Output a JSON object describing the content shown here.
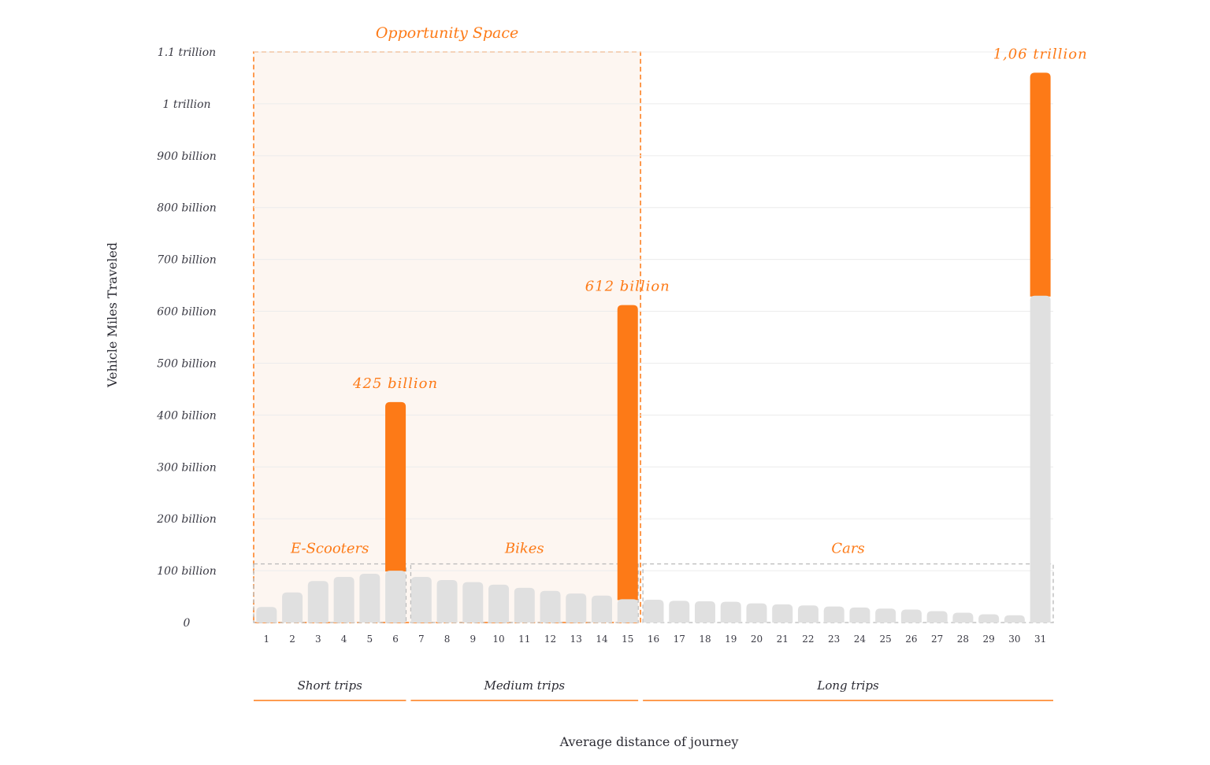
{
  "chart_data": {
    "type": "bar",
    "title": "",
    "xlabel": "Average distance of journey",
    "ylabel": "Vehicle Miles Traveled",
    "ylim": [
      0,
      1100
    ],
    "ytick_labels": [
      {
        "value": 0,
        "label": "0"
      },
      {
        "value": 100,
        "label": "100 billion"
      },
      {
        "value": 200,
        "label": "200 billion"
      },
      {
        "value": 300,
        "label": "300 billion"
      },
      {
        "value": 400,
        "label": "400 billion"
      },
      {
        "value": 500,
        "label": "500 billion"
      },
      {
        "value": 600,
        "label": "600 billion"
      },
      {
        "value": 700,
        "label": "700 billion"
      },
      {
        "value": 800,
        "label": "800 billion"
      },
      {
        "value": 900,
        "label": "900 billion"
      },
      {
        "value": 1000,
        "label": "1 trillion"
      },
      {
        "value": 1100,
        "label": "1.1 trillion"
      }
    ],
    "categories": [
      "1",
      "2",
      "3",
      "4",
      "5",
      "6",
      "7",
      "8",
      "9",
      "10",
      "11",
      "12",
      "13",
      "14",
      "15",
      "16",
      "17",
      "18",
      "19",
      "20",
      "21",
      "22",
      "23",
      "24",
      "25",
      "26",
      "27",
      "28",
      "29",
      "30",
      "31"
    ],
    "series": [
      {
        "values": [
          30,
          58,
          80,
          88,
          94,
          100,
          88,
          82,
          78,
          73,
          67,
          61,
          56,
          52,
          45,
          44,
          42,
          41,
          40,
          37,
          35,
          33,
          31,
          29,
          27,
          25,
          22,
          19,
          16,
          14,
          630
        ],
        "color": "#e0e0e0"
      },
      {
        "values": [
          0,
          0,
          0,
          0,
          0,
          325,
          0,
          0,
          0,
          0,
          0,
          0,
          0,
          0,
          567,
          0,
          0,
          0,
          0,
          0,
          0,
          0,
          0,
          0,
          0,
          0,
          0,
          0,
          0,
          0,
          430
        ],
        "color": "#fd7a17"
      }
    ],
    "bar_labels": [
      {
        "category": "6",
        "text": "425 billion"
      },
      {
        "category": "15",
        "text": "612 billion"
      },
      {
        "category": "31",
        "text": "1,06 trillion"
      }
    ],
    "highlight_region": {
      "label": "Opportunity Space",
      "from": "1",
      "to": "15"
    },
    "vehicle_groups": [
      {
        "label": "E-Scooters",
        "from": "1",
        "to": "6"
      },
      {
        "label": "Bikes",
        "from": "7",
        "to": "15"
      },
      {
        "label": "Cars",
        "from": "16",
        "to": "31"
      }
    ],
    "trip_groups": [
      {
        "label": "Short trips",
        "from": "1",
        "to": "6"
      },
      {
        "label": "Medium trips",
        "from": "7",
        "to": "15"
      },
      {
        "label": "Long trips",
        "from": "16",
        "to": "31"
      }
    ],
    "grid": true,
    "legend": "none",
    "colors": {
      "accent": "#fd7a17",
      "base": "#e0e0e0",
      "highlight_fill": "#fdf6f1",
      "dashed_box": "#b8b8b8"
    }
  }
}
